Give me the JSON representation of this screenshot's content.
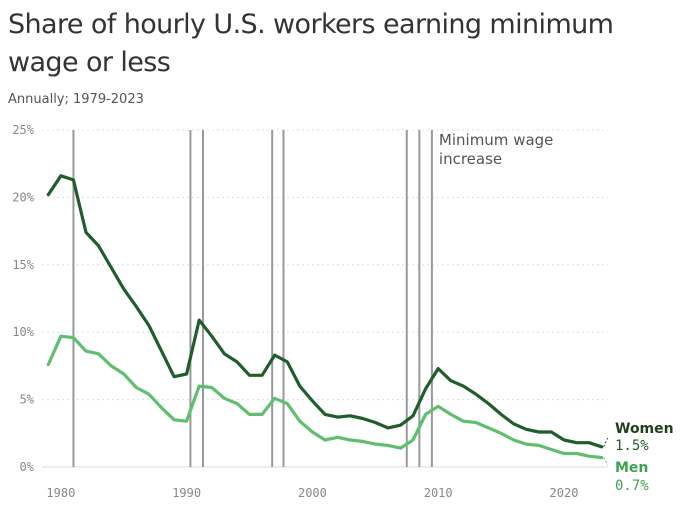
{
  "title": "Share of hourly U.S. workers earning minimum wage or less",
  "subtitle": "Annually; 1979-2023",
  "colors": {
    "women": "#1f5e2a",
    "men": "#5fbf6e",
    "vline": "#999999",
    "grid": "#dddddd"
  },
  "chart_data": {
    "type": "line",
    "title": "Share of hourly U.S. workers earning minimum wage or less",
    "subtitle": "Annually; 1979-2023",
    "xlabel": "",
    "ylabel": "",
    "xlim": [
      1978.5,
      2023.5
    ],
    "ylim": [
      0,
      25
    ],
    "xticks": [
      1980,
      1990,
      2000,
      2010,
      2020
    ],
    "yticks": [
      0,
      5,
      10,
      15,
      20,
      25
    ],
    "ytick_labels": [
      "0%",
      "5%",
      "10%",
      "15%",
      "20%",
      "25%"
    ],
    "grid": true,
    "annotation": "Minimum wage increase",
    "annotation_lines": [
      "Minimum wage",
      "increase"
    ],
    "min_wage_increase_years": [
      1981,
      1990.3,
      1991.3,
      1996.8,
      1997.7,
      2007.5,
      2008.5,
      2009.5
    ],
    "x": [
      1979,
      1980,
      1981,
      1982,
      1983,
      1984,
      1985,
      1986,
      1987,
      1988,
      1989,
      1990,
      1991,
      1992,
      1993,
      1994,
      1995,
      1996,
      1997,
      1998,
      1999,
      2000,
      2001,
      2002,
      2003,
      2004,
      2005,
      2006,
      2007,
      2008,
      2009,
      2010,
      2011,
      2012,
      2013,
      2014,
      2015,
      2016,
      2017,
      2018,
      2019,
      2020,
      2021,
      2022,
      2023
    ],
    "series": [
      {
        "name": "Women",
        "end_label": "1.5%",
        "values": [
          20.2,
          21.6,
          21.3,
          17.4,
          16.4,
          14.8,
          13.2,
          11.9,
          10.5,
          8.6,
          6.7,
          6.9,
          10.9,
          9.7,
          8.4,
          7.8,
          6.8,
          6.8,
          8.3,
          7.8,
          6.0,
          4.9,
          3.9,
          3.7,
          3.8,
          3.6,
          3.3,
          2.9,
          3.1,
          3.8,
          5.8,
          7.3,
          6.4,
          6.0,
          5.4,
          4.7,
          3.9,
          3.2,
          2.8,
          2.6,
          2.6,
          2.0,
          1.8,
          1.8,
          1.5
        ]
      },
      {
        "name": "Men",
        "end_label": "0.7%",
        "values": [
          7.6,
          9.7,
          9.6,
          8.6,
          8.4,
          7.5,
          6.9,
          5.9,
          5.4,
          4.4,
          3.5,
          3.4,
          6.0,
          5.9,
          5.1,
          4.7,
          3.9,
          3.9,
          5.1,
          4.7,
          3.4,
          2.6,
          2.0,
          2.2,
          2.0,
          1.9,
          1.7,
          1.6,
          1.4,
          2.0,
          3.9,
          4.5,
          3.9,
          3.4,
          3.3,
          2.9,
          2.5,
          2.0,
          1.7,
          1.6,
          1.3,
          1.0,
          1.0,
          0.8,
          0.7
        ]
      }
    ]
  }
}
